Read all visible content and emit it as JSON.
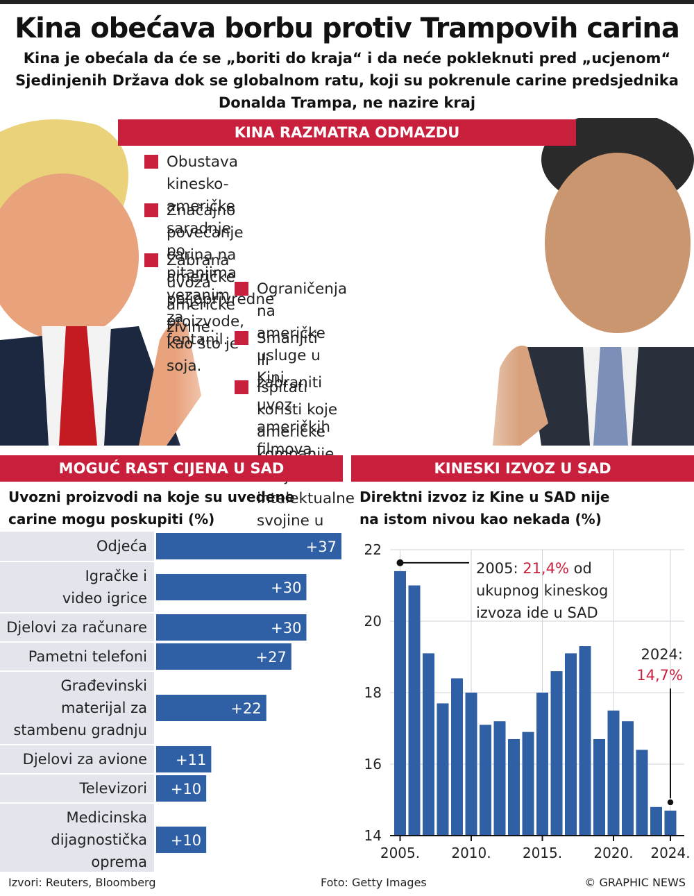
{
  "header": {
    "title": "Kina obećava borbu protiv Trampovih carina",
    "subtitle_lines": [
      "Kina je obećala da će se „boriti do kraja“ i da neće pokleknuti pred „ucjenom“",
      "Sjedinjenih Država dok se globalnom ratu, koji su pokrenule carine predsjednika",
      "Donalda Trampa, ne nazire kraj"
    ]
  },
  "retaliation": {
    "heading": "KINA RAZMATRA ODMAZDU",
    "items": [
      [
        "Obustava kinesko-američke saradnje po",
        "pitanjima vezanim za fentanil."
      ],
      [
        "Značajno povećanje carina na američke",
        "poljoprivredne proizvode, kao što je soja."
      ],
      [
        "Zabrana uvoza američke živine."
      ],
      [
        "Ograničenja na",
        "američke usluge u Kini."
      ],
      [
        "Smanjiti ili zabraniti uvoz",
        "američkih filmova."
      ],
      [
        "Ispitati koristi koje američke",
        "kompanije imaju od",
        "intelektualne svojine u Kini."
      ]
    ]
  },
  "price_panel": {
    "heading": "MOGUĆ RAST CIJENA U SAD",
    "subtitle_lines": [
      "Uvozni proizvodi na koje su uvedene",
      "carine mogu poskupiti (%)"
    ]
  },
  "export_panel": {
    "heading": "KINESKI IZVOZ U SAD",
    "subtitle_lines": [
      "Direktni izvoz iz Kine u SAD nije",
      "na istom nivou kao nekada (%)"
    ],
    "annotation_2005": {
      "prefix": "2005: ",
      "value": "21,4%",
      "suffix": " od",
      "lines": [
        "ukupnog kineskog",
        "izvoza ide u SAD"
      ]
    },
    "annotation_2024": {
      "label": "2024:",
      "value": "14,7%"
    }
  },
  "chart_data": [
    {
      "type": "bar",
      "orientation": "horizontal",
      "categories": [
        [
          "Odjeća"
        ],
        [
          "Igračke i",
          "video igrice"
        ],
        [
          "Djelovi za računare"
        ],
        [
          "Pametni telefoni"
        ],
        [
          "Građevinski",
          "materijal za",
          "stambenu gradnju"
        ],
        [
          "Djelovi za avione"
        ],
        [
          "Televizori"
        ],
        [
          "Medicinska",
          "dijagnostička",
          "oprema"
        ]
      ],
      "values": [
        37,
        30,
        30,
        27,
        22,
        11,
        10,
        10
      ],
      "value_labels": [
        "+37",
        "+30",
        "+30",
        "+27",
        "+22",
        "+11",
        "+10",
        "+10"
      ],
      "bar_color": "#2f5fa5",
      "label_bg": "#e2e5ec"
    },
    {
      "type": "bar",
      "x": [
        2005,
        2006,
        2007,
        2008,
        2009,
        2010,
        2011,
        2012,
        2013,
        2014,
        2015,
        2016,
        2017,
        2018,
        2019,
        2020,
        2021,
        2022,
        2023,
        2024
      ],
      "values": [
        21.4,
        21.0,
        19.1,
        17.7,
        18.4,
        18.0,
        17.1,
        17.2,
        16.7,
        16.9,
        18.0,
        18.6,
        19.1,
        19.3,
        16.7,
        17.5,
        17.2,
        16.4,
        14.8,
        14.7
      ],
      "ylim": [
        14,
        22
      ],
      "yticks": [
        "14",
        "16",
        "18",
        "20",
        "22"
      ],
      "xticks": [
        "2005.",
        "2010.",
        "2015.",
        "2020.",
        "2024."
      ],
      "grid": true,
      "bar_color": "#2f5fa5"
    }
  ],
  "footer": {
    "sources": "Izvori: Reuters, Bloomberg",
    "photo": "Foto: Getty Images",
    "copyright": "© GRAPHIC NEWS"
  },
  "colors": {
    "accent": "#c8203c",
    "bar": "#2f5fa5"
  }
}
